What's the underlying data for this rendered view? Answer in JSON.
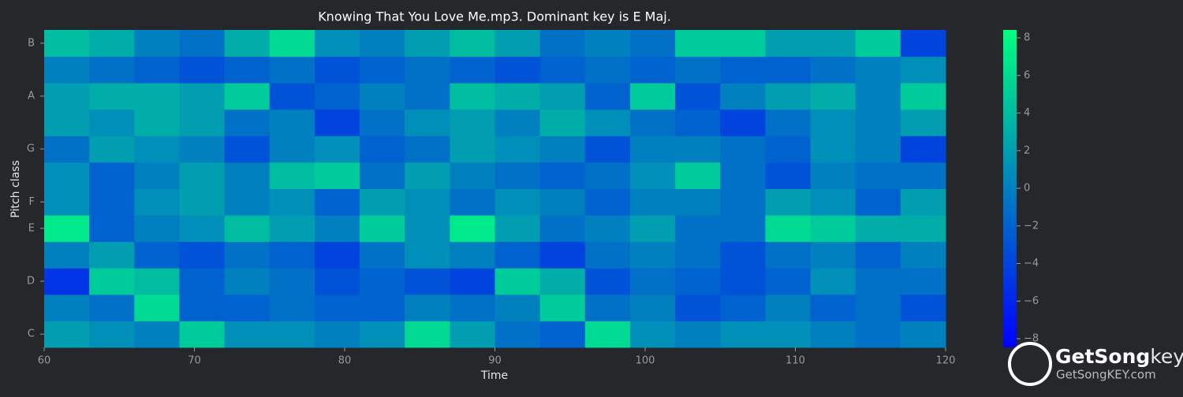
{
  "chart_data": {
    "type": "heatmap",
    "title": "Knowing That You Love Me.mp3. Dominant key is E Maj.",
    "x_label": "Time",
    "y_label": "Pitch class",
    "xbins": [
      60,
      63,
      66,
      69,
      72,
      75,
      78,
      81,
      84,
      87,
      90,
      93,
      96,
      99,
      102,
      105,
      108,
      111,
      114,
      117,
      120
    ],
    "xlim": [
      60,
      120
    ],
    "xticks": [
      60,
      70,
      80,
      90,
      100,
      110,
      120
    ],
    "categories": [
      "C",
      null,
      "D",
      null,
      "E",
      "F",
      null,
      "G",
      null,
      "A",
      null,
      "B"
    ],
    "values": [
      [
        2,
        1,
        0,
        5,
        1,
        1,
        0,
        1,
        6,
        2,
        -1,
        -2,
        6,
        1,
        0,
        1,
        1,
        0,
        -1,
        0
      ],
      [
        0,
        -1,
        6,
        -2,
        -2,
        -1,
        -2,
        -2,
        0,
        -1,
        0,
        5,
        -1,
        0,
        -3,
        -2,
        0,
        -2,
        -1,
        -3
      ],
      [
        -5,
        5,
        4,
        -2,
        0,
        -1,
        -3,
        -2,
        -3,
        -4,
        5,
        3,
        -3,
        -1,
        -2,
        -3,
        -2,
        1,
        -1,
        -1
      ],
      [
        0,
        2,
        -2,
        -3,
        -1,
        -2,
        -4,
        -1,
        1,
        0,
        -2,
        -4,
        -1,
        0,
        -1,
        -3,
        -1,
        0,
        -2,
        0
      ],
      [
        7,
        -2,
        0,
        1,
        4,
        2,
        0,
        5,
        1,
        7,
        2,
        -1,
        0,
        2,
        -1,
        -1,
        6,
        5,
        3,
        3
      ],
      [
        1,
        -2,
        1,
        2,
        0,
        1,
        -2,
        2,
        1,
        -1,
        1,
        0,
        -2,
        0,
        0,
        -1,
        2,
        1,
        -2,
        2
      ],
      [
        1,
        -2,
        0,
        2,
        0,
        4,
        5,
        -1,
        2,
        0,
        -1,
        -2,
        -1,
        1,
        5,
        -1,
        -3,
        0,
        -1,
        -1
      ],
      [
        -1,
        2,
        1,
        0,
        -3,
        0,
        1,
        -2,
        -1,
        2,
        1,
        0,
        -3,
        0,
        0,
        -1,
        -2,
        1,
        0,
        -4
      ],
      [
        2,
        1,
        3,
        2,
        -1,
        0,
        -4,
        -1,
        1,
        2,
        0,
        3,
        1,
        -1,
        -2,
        -4,
        -1,
        1,
        0,
        2
      ],
      [
        2,
        3,
        3,
        2,
        5,
        -3,
        -2,
        0,
        -1,
        4,
        3,
        2,
        -2,
        5,
        -3,
        0,
        2,
        3,
        0,
        5
      ],
      [
        0,
        -1,
        -2,
        -3,
        -2,
        -1,
        -3,
        -2,
        -1,
        -2,
        -3,
        -2,
        -1,
        -2,
        -1,
        -2,
        -2,
        -1,
        0,
        1
      ],
      [
        4,
        3,
        0,
        -1,
        3,
        6,
        1,
        0,
        2,
        4,
        2,
        -1,
        0,
        -1,
        5,
        5,
        2,
        2,
        5,
        -4
      ]
    ],
    "colormap": [
      "#0000ff",
      "#00ff80"
    ],
    "clim": [
      -8.46,
      8.42
    ],
    "cticks": [
      {
        "value": -8,
        "label": "−8"
      },
      {
        "value": -6,
        "label": "−6"
      },
      {
        "value": -4,
        "label": "−4"
      },
      {
        "value": -2,
        "label": "−2"
      },
      0,
      2,
      4,
      6,
      8
    ]
  },
  "watermark": {
    "brand": "GetSong",
    "brand_accent": "key",
    "url": "GetSongKEY.com"
  }
}
